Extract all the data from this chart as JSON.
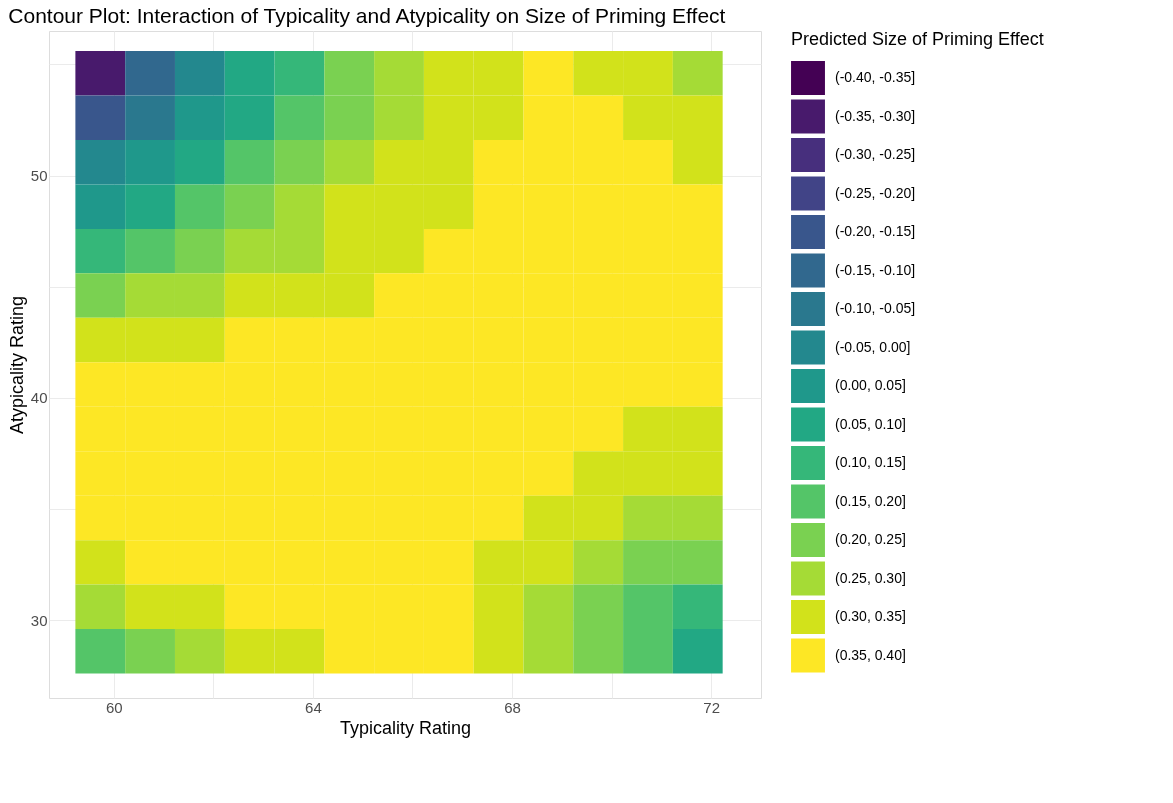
{
  "chart_data": {
    "type": "heatmap",
    "title": "Contour Plot: Interaction of Typicality and Atypicality on Size of Priming Effect",
    "xlabel": "Typicality Rating",
    "ylabel": "Atypicality Rating",
    "legend_title": "Predicted Size of Priming Effect",
    "grid": true,
    "x": [
      59.73,
      60.73,
      61.73,
      62.73,
      63.73,
      64.73,
      65.73,
      66.73,
      67.73,
      68.73,
      69.73,
      70.73,
      71.73
    ],
    "y": [
      54.6,
      52.6,
      50.6,
      48.6,
      46.6,
      44.6,
      42.6,
      40.6,
      38.6,
      36.6,
      34.6,
      32.6,
      30.6,
      28.6
    ],
    "xlim": [
      58.7,
      73.0
    ],
    "ylim": [
      26.5,
      56.5
    ],
    "xticks": [
      60,
      {
        "value": 62,
        "label": null
      },
      64,
      {
        "value": 66,
        "label": null
      },
      68,
      {
        "value": 70,
        "label": null
      },
      72
    ],
    "yticks": [
      30,
      {
        "value": 35,
        "label": null
      },
      40,
      {
        "value": 45,
        "label": null
      },
      50,
      {
        "value": 55,
        "label": null
      }
    ],
    "clim": [
      -0.4,
      0.4
    ],
    "cticks": [
      {
        "value": -0.375,
        "label": "(-0.40, -0.35]"
      },
      {
        "value": -0.325,
        "label": "(-0.35, -0.30]"
      },
      {
        "value": -0.275,
        "label": "(-0.30, -0.25]"
      },
      {
        "value": -0.225,
        "label": "(-0.25, -0.20]"
      },
      {
        "value": -0.175,
        "label": "(-0.20, -0.15]"
      },
      {
        "value": -0.125,
        "label": "(-0.15, -0.10]"
      },
      {
        "value": -0.075,
        "label": "(-0.10, -0.05]"
      },
      {
        "value": -0.025,
        "label": "(-0.05, 0.00]"
      },
      {
        "value": 0.025,
        "label": "(0.00, 0.05]"
      },
      {
        "value": 0.075,
        "label": "(0.05, 0.10]"
      },
      {
        "value": 0.125,
        "label": "(0.10, 0.15]"
      },
      {
        "value": 0.175,
        "label": "(0.15, 0.20]"
      },
      {
        "value": 0.225,
        "label": "(0.20, 0.25]"
      },
      {
        "value": 0.275,
        "label": "(0.25, 0.30]"
      },
      {
        "value": 0.325,
        "label": "(0.30, 0.35]"
      },
      {
        "value": 0.375,
        "label": "(0.35, 0.40]"
      }
    ],
    "colors": [
      "#440154",
      "#481a6c",
      "#472f7d",
      "#414487",
      "#39568c",
      "#31688e",
      "#2a788e",
      "#23888e",
      "#1f988b",
      "#22a884",
      "#35b779",
      "#54c568",
      "#7ad151",
      "#a5db36",
      "#d2e21b",
      "#fde725"
    ],
    "cells": [
      [
        -0.325,
        -0.125,
        -0.025,
        0.075,
        0.125,
        0.225,
        0.275,
        0.325,
        0.325,
        0.375,
        0.325,
        0.325,
        0.275
      ],
      [
        -0.175,
        -0.075,
        0.025,
        0.075,
        0.175,
        0.225,
        0.275,
        0.325,
        0.325,
        0.375,
        0.375,
        0.325,
        0.325
      ],
      [
        -0.025,
        0.025,
        0.075,
        0.175,
        0.225,
        0.275,
        0.325,
        0.325,
        0.375,
        0.375,
        0.375,
        0.375,
        0.325
      ],
      [
        0.025,
        0.075,
        0.175,
        0.225,
        0.275,
        0.325,
        0.325,
        0.325,
        0.375,
        0.375,
        0.375,
        0.375,
        0.375
      ],
      [
        0.125,
        0.175,
        0.225,
        0.275,
        0.275,
        0.325,
        0.325,
        0.375,
        0.375,
        0.375,
        0.375,
        0.375,
        0.375
      ],
      [
        0.225,
        0.275,
        0.275,
        0.325,
        0.325,
        0.325,
        0.375,
        0.375,
        0.375,
        0.375,
        0.375,
        0.375,
        0.375
      ],
      [
        0.325,
        0.325,
        0.325,
        0.375,
        0.375,
        0.375,
        0.375,
        0.375,
        0.375,
        0.375,
        0.375,
        0.375,
        0.375
      ],
      [
        0.375,
        0.375,
        0.375,
        0.375,
        0.375,
        0.375,
        0.375,
        0.375,
        0.375,
        0.375,
        0.375,
        0.375,
        0.375
      ],
      [
        0.375,
        0.375,
        0.375,
        0.375,
        0.375,
        0.375,
        0.375,
        0.375,
        0.375,
        0.375,
        0.375,
        0.325,
        0.325
      ],
      [
        0.375,
        0.375,
        0.375,
        0.375,
        0.375,
        0.375,
        0.375,
        0.375,
        0.375,
        0.375,
        0.325,
        0.325,
        0.325
      ],
      [
        0.375,
        0.375,
        0.375,
        0.375,
        0.375,
        0.375,
        0.375,
        0.375,
        0.375,
        0.325,
        0.325,
        0.275,
        0.275
      ],
      [
        0.325,
        0.375,
        0.375,
        0.375,
        0.375,
        0.375,
        0.375,
        0.375,
        0.325,
        0.325,
        0.275,
        0.225,
        0.225
      ],
      [
        0.275,
        0.325,
        0.325,
        0.375,
        0.375,
        0.375,
        0.375,
        0.375,
        0.325,
        0.275,
        0.225,
        0.175,
        0.125
      ],
      [
        0.175,
        0.225,
        0.275,
        0.325,
        0.325,
        0.375,
        0.375,
        0.375,
        0.325,
        0.275,
        0.225,
        0.175,
        0.075
      ]
    ]
  }
}
